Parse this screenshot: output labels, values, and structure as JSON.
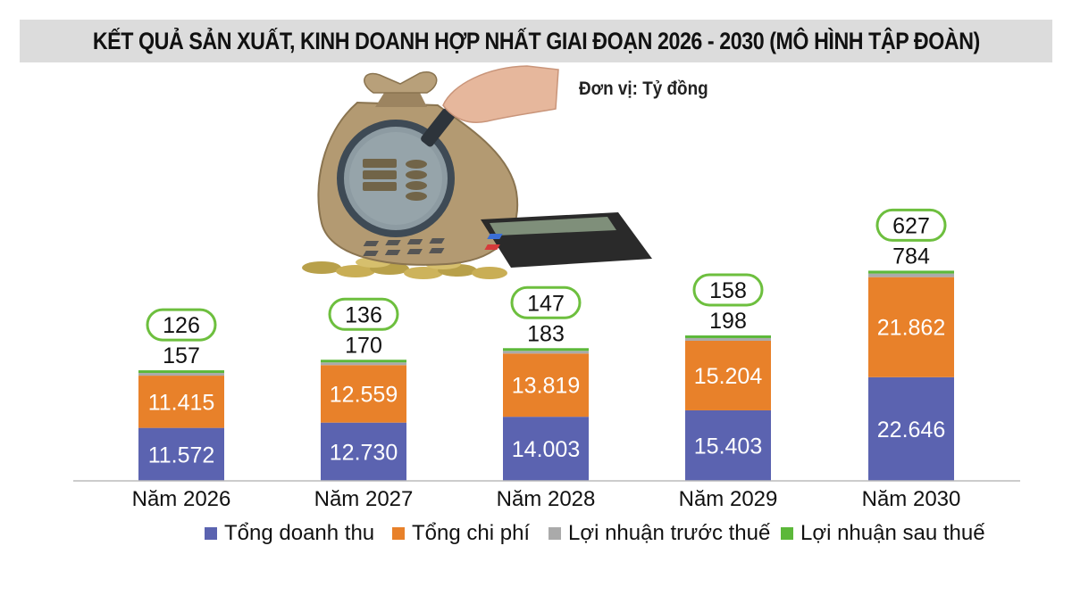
{
  "title": "KẾT QUẢ SẢN XUẤT, KINH DOANH HỢP NHẤT GIAI ĐOẠN 2026 - 2030 (MÔ HÌNH TẬP ĐOÀN)",
  "unit": "Đơn vị: Tỷ đồng",
  "colors": {
    "revenue": "#5b63b0",
    "cost": "#e8812a",
    "profit_before_tax": "#aaaaaa",
    "profit_after_tax": "#5cb83a",
    "title_bg": "#dcdcdc",
    "pill_border": "#6dbf3e"
  },
  "chart_data": {
    "type": "bar",
    "stacked": true,
    "categories": [
      "Năm 2026",
      "Năm 2027",
      "Năm 2028",
      "Năm 2029",
      "Năm 2030"
    ],
    "series": [
      {
        "name": "Tổng doanh thu",
        "values": [
          11572,
          12730,
          14003,
          15403,
          22646
        ],
        "labels": [
          "11.572",
          "12.730",
          "14.003",
          "15.403",
          "22.646"
        ]
      },
      {
        "name": "Tổng chi phí",
        "values": [
          11415,
          12559,
          13819,
          15204,
          21862
        ],
        "labels": [
          "11.415",
          "12.559",
          "13.819",
          "15.204",
          "21.862"
        ]
      },
      {
        "name": "Lợi nhuận trước thuế",
        "values": [
          157,
          170,
          183,
          198,
          784
        ],
        "labels": [
          "157",
          "170",
          "183",
          "198",
          "784"
        ]
      },
      {
        "name": "Lợi nhuận sau thuế",
        "values": [
          126,
          136,
          147,
          158,
          627
        ],
        "labels": [
          "126",
          "136",
          "147",
          "158",
          "627"
        ]
      }
    ],
    "legend_position": "bottom",
    "grid": false
  }
}
